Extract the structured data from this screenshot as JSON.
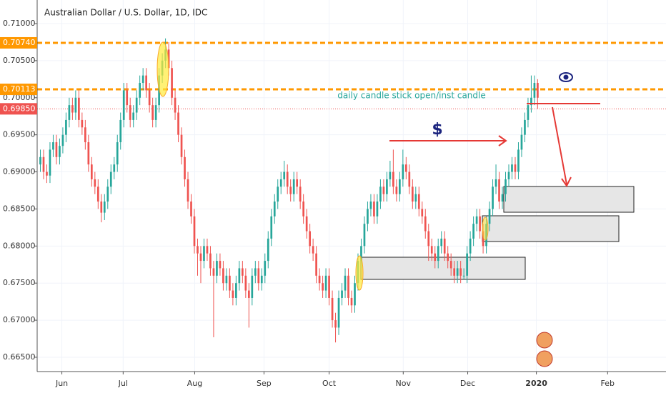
{
  "chart_data": {
    "type": "candlestick",
    "title": "Australian Dollar / U.S. Dollar, 1D, IDC",
    "annotation": "daily candle stick open/inst candle",
    "marker_text": "$",
    "up_color": "#26a69a",
    "down_color": "#ef5350",
    "grid": true,
    "ylim": [
      0.66307,
      0.71318
    ],
    "xlim": [
      -1,
      195
    ],
    "yticks": [
      {
        "value": 0.665,
        "label": "0.66500"
      },
      {
        "value": 0.67,
        "label": "0.67000"
      },
      {
        "value": 0.675,
        "label": "0.67500"
      },
      {
        "value": 0.68,
        "label": "0.68000"
      },
      {
        "value": 0.685,
        "label": "0.68500"
      },
      {
        "value": 0.69,
        "label": "0.69000"
      },
      {
        "value": 0.695,
        "label": "0.69500"
      },
      {
        "value": 0.7,
        "label": "0.70000"
      },
      {
        "value": 0.705,
        "label": "0.70500"
      },
      {
        "value": 0.71,
        "label": "0.71000"
      }
    ],
    "xticks": [
      {
        "value": 6.7,
        "label": "Jun"
      },
      {
        "value": 25.8,
        "label": "Jul"
      },
      {
        "value": 48.1,
        "label": "Aug"
      },
      {
        "value": 69.7,
        "label": "Sep"
      },
      {
        "value": 90,
        "label": "Oct"
      },
      {
        "value": 113.1,
        "label": "Nov"
      },
      {
        "value": 133.2,
        "label": "Dec"
      },
      {
        "value": 154.6,
        "label": "2020"
      },
      {
        "value": 176.8,
        "label": "Feb"
      }
    ],
    "levels": [
      {
        "value": 0.7074,
        "label": "0.70740",
        "color": "#ff9800"
      },
      {
        "value": 0.70113,
        "label": "0.70113",
        "color": "#ff9800"
      },
      {
        "value": 0.6985,
        "label": "0.69850",
        "color": "#ef5350"
      }
    ],
    "candles": [
      [
        0.691,
        0.693,
        0.69,
        0.692
      ],
      [
        0.692,
        0.693,
        0.689,
        0.69
      ],
      [
        0.69,
        0.691,
        0.6885,
        0.6895
      ],
      [
        0.6895,
        0.694,
        0.6885,
        0.693
      ],
      [
        0.693,
        0.695,
        0.692,
        0.694
      ],
      [
        0.694,
        0.695,
        0.691,
        0.692
      ],
      [
        0.692,
        0.6945,
        0.691,
        0.6935
      ],
      [
        0.6935,
        0.696,
        0.6925,
        0.695
      ],
      [
        0.695,
        0.698,
        0.694,
        0.697
      ],
      [
        0.697,
        0.7,
        0.696,
        0.699
      ],
      [
        0.699,
        0.7,
        0.697,
        0.698
      ],
      [
        0.698,
        0.701,
        0.697,
        0.7
      ],
      [
        0.7,
        0.701,
        0.696,
        0.697
      ],
      [
        0.697,
        0.698,
        0.695,
        0.696
      ],
      [
        0.696,
        0.697,
        0.693,
        0.694
      ],
      [
        0.694,
        0.695,
        0.69,
        0.691
      ],
      [
        0.691,
        0.692,
        0.688,
        0.689
      ],
      [
        0.689,
        0.69,
        0.687,
        0.688
      ],
      [
        0.688,
        0.689,
        0.685,
        0.686
      ],
      [
        0.686,
        0.687,
        0.6832,
        0.6845
      ],
      [
        0.6845,
        0.687,
        0.6835,
        0.686
      ],
      [
        0.686,
        0.689,
        0.685,
        0.688
      ],
      [
        0.688,
        0.691,
        0.687,
        0.69
      ],
      [
        0.69,
        0.692,
        0.689,
        0.691
      ],
      [
        0.691,
        0.695,
        0.69,
        0.694
      ],
      [
        0.694,
        0.698,
        0.693,
        0.697
      ],
      [
        0.697,
        0.702,
        0.696,
        0.701
      ],
      [
        0.701,
        0.702,
        0.698,
        0.699
      ],
      [
        0.699,
        0.7,
        0.696,
        0.697
      ],
      [
        0.697,
        0.699,
        0.696,
        0.698
      ],
      [
        0.698,
        0.701,
        0.697,
        0.7
      ],
      [
        0.7,
        0.703,
        0.699,
        0.702
      ],
      [
        0.702,
        0.704,
        0.701,
        0.703
      ],
      [
        0.703,
        0.704,
        0.7,
        0.701
      ],
      [
        0.701,
        0.702,
        0.698,
        0.699
      ],
      [
        0.699,
        0.7,
        0.696,
        0.697
      ],
      [
        0.697,
        0.7,
        0.696,
        0.699
      ],
      [
        0.699,
        0.704,
        0.698,
        0.703
      ],
      [
        0.703,
        0.706,
        0.702,
        0.705
      ],
      [
        0.705,
        0.708,
        0.704,
        0.7065
      ],
      [
        0.7065,
        0.7075,
        0.703,
        0.704
      ],
      [
        0.704,
        0.705,
        0.699,
        0.7
      ],
      [
        0.7,
        0.701,
        0.697,
        0.698
      ],
      [
        0.698,
        0.699,
        0.694,
        0.695
      ],
      [
        0.695,
        0.696,
        0.691,
        0.692
      ],
      [
        0.692,
        0.693,
        0.688,
        0.689
      ],
      [
        0.689,
        0.69,
        0.685,
        0.686
      ],
      [
        0.686,
        0.687,
        0.683,
        0.684
      ],
      [
        0.684,
        0.685,
        0.679,
        0.68
      ],
      [
        0.68,
        0.681,
        0.676,
        0.679
      ],
      [
        0.679,
        0.68,
        0.675,
        0.678
      ],
      [
        0.678,
        0.681,
        0.677,
        0.68
      ],
      [
        0.68,
        0.681,
        0.678,
        0.679
      ],
      [
        0.679,
        0.68,
        0.676,
        0.677
      ],
      [
        0.677,
        0.678,
        0.6677,
        0.676
      ],
      [
        0.676,
        0.679,
        0.675,
        0.678
      ],
      [
        0.678,
        0.679,
        0.676,
        0.677
      ],
      [
        0.677,
        0.678,
        0.674,
        0.675
      ],
      [
        0.675,
        0.677,
        0.674,
        0.676
      ],
      [
        0.676,
        0.677,
        0.673,
        0.674
      ],
      [
        0.674,
        0.675,
        0.672,
        0.673
      ],
      [
        0.673,
        0.676,
        0.672,
        0.675
      ],
      [
        0.675,
        0.678,
        0.674,
        0.677
      ],
      [
        0.677,
        0.678,
        0.675,
        0.676
      ],
      [
        0.676,
        0.677,
        0.673,
        0.674
      ],
      [
        0.674,
        0.675,
        0.669,
        0.673
      ],
      [
        0.673,
        0.677,
        0.672,
        0.676
      ],
      [
        0.676,
        0.678,
        0.675,
        0.677
      ],
      [
        0.677,
        0.678,
        0.674,
        0.675
      ],
      [
        0.675,
        0.677,
        0.674,
        0.676
      ],
      [
        0.676,
        0.679,
        0.675,
        0.678
      ],
      [
        0.678,
        0.682,
        0.677,
        0.681
      ],
      [
        0.681,
        0.685,
        0.68,
        0.684
      ],
      [
        0.684,
        0.687,
        0.683,
        0.686
      ],
      [
        0.686,
        0.689,
        0.685,
        0.688
      ],
      [
        0.688,
        0.69,
        0.687,
        0.689
      ],
      [
        0.689,
        0.6915,
        0.688,
        0.69
      ],
      [
        0.69,
        0.691,
        0.687,
        0.688
      ],
      [
        0.688,
        0.689,
        0.686,
        0.687
      ],
      [
        0.687,
        0.69,
        0.686,
        0.689
      ],
      [
        0.689,
        0.69,
        0.687,
        0.688
      ],
      [
        0.688,
        0.689,
        0.685,
        0.686
      ],
      [
        0.686,
        0.687,
        0.683,
        0.684
      ],
      [
        0.684,
        0.685,
        0.681,
        0.682
      ],
      [
        0.682,
        0.683,
        0.679,
        0.68
      ],
      [
        0.68,
        0.681,
        0.678,
        0.679
      ],
      [
        0.679,
        0.68,
        0.675,
        0.676
      ],
      [
        0.676,
        0.677,
        0.674,
        0.675
      ],
      [
        0.675,
        0.676,
        0.673,
        0.674
      ],
      [
        0.674,
        0.677,
        0.673,
        0.676
      ],
      [
        0.676,
        0.677,
        0.672,
        0.673
      ],
      [
        0.673,
        0.674,
        0.669,
        0.67
      ],
      [
        0.67,
        0.671,
        0.667,
        0.669
      ],
      [
        0.669,
        0.674,
        0.668,
        0.673
      ],
      [
        0.673,
        0.675,
        0.672,
        0.674
      ],
      [
        0.674,
        0.677,
        0.673,
        0.676
      ],
      [
        0.676,
        0.677,
        0.672,
        0.673
      ],
      [
        0.673,
        0.674,
        0.671,
        0.672
      ],
      [
        0.672,
        0.676,
        0.671,
        0.675
      ],
      [
        0.675,
        0.679,
        0.674,
        0.678
      ],
      [
        0.678,
        0.681,
        0.677,
        0.68
      ],
      [
        0.68,
        0.684,
        0.679,
        0.683
      ],
      [
        0.683,
        0.686,
        0.682,
        0.685
      ],
      [
        0.685,
        0.687,
        0.684,
        0.686
      ],
      [
        0.686,
        0.687,
        0.683,
        0.684
      ],
      [
        0.684,
        0.687,
        0.683,
        0.686
      ],
      [
        0.686,
        0.689,
        0.685,
        0.688
      ],
      [
        0.688,
        0.689,
        0.686,
        0.687
      ],
      [
        0.687,
        0.69,
        0.686,
        0.689
      ],
      [
        0.689,
        0.6915,
        0.688,
        0.69
      ],
      [
        0.69,
        0.693,
        0.687,
        0.688
      ],
      [
        0.688,
        0.689,
        0.686,
        0.687
      ],
      [
        0.687,
        0.69,
        0.686,
        0.689
      ],
      [
        0.689,
        0.693,
        0.688,
        0.691
      ],
      [
        0.691,
        0.692,
        0.689,
        0.69
      ],
      [
        0.69,
        0.691,
        0.687,
        0.688
      ],
      [
        0.688,
        0.689,
        0.685,
        0.686
      ],
      [
        0.686,
        0.688,
        0.685,
        0.687
      ],
      [
        0.687,
        0.688,
        0.684,
        0.685
      ],
      [
        0.685,
        0.686,
        0.683,
        0.684
      ],
      [
        0.684,
        0.685,
        0.681,
        0.682
      ],
      [
        0.682,
        0.683,
        0.678,
        0.68
      ],
      [
        0.68,
        0.681,
        0.678,
        0.679
      ],
      [
        0.679,
        0.68,
        0.677,
        0.678
      ],
      [
        0.678,
        0.681,
        0.677,
        0.68
      ],
      [
        0.68,
        0.682,
        0.679,
        0.681
      ],
      [
        0.681,
        0.682,
        0.678,
        0.679
      ],
      [
        0.679,
        0.68,
        0.677,
        0.678
      ],
      [
        0.678,
        0.679,
        0.676,
        0.677
      ],
      [
        0.677,
        0.678,
        0.675,
        0.676
      ],
      [
        0.676,
        0.678,
        0.675,
        0.677
      ],
      [
        0.677,
        0.678,
        0.675,
        0.676
      ],
      [
        0.676,
        0.677,
        0.6755,
        0.676
      ],
      [
        0.676,
        0.68,
        0.675,
        0.679
      ],
      [
        0.679,
        0.682,
        0.678,
        0.681
      ],
      [
        0.681,
        0.684,
        0.68,
        0.683
      ],
      [
        0.683,
        0.685,
        0.682,
        0.684
      ],
      [
        0.684,
        0.685,
        0.681,
        0.682
      ],
      [
        0.682,
        0.683,
        0.679,
        0.68
      ],
      [
        0.68,
        0.684,
        0.679,
        0.683
      ],
      [
        0.683,
        0.686,
        0.682,
        0.685
      ],
      [
        0.685,
        0.689,
        0.684,
        0.688
      ],
      [
        0.688,
        0.691,
        0.687,
        0.689
      ],
      [
        0.689,
        0.69,
        0.685,
        0.686
      ],
      [
        0.686,
        0.688,
        0.685,
        0.687
      ],
      [
        0.687,
        0.69,
        0.686,
        0.689
      ],
      [
        0.689,
        0.691,
        0.688,
        0.69
      ],
      [
        0.69,
        0.692,
        0.689,
        0.691
      ],
      [
        0.691,
        0.692,
        0.689,
        0.69
      ],
      [
        0.69,
        0.694,
        0.689,
        0.693
      ],
      [
        0.693,
        0.696,
        0.692,
        0.695
      ],
      [
        0.695,
        0.698,
        0.694,
        0.697
      ],
      [
        0.697,
        0.7,
        0.696,
        0.699
      ],
      [
        0.699,
        0.703,
        0.698,
        0.7
      ],
      [
        0.7,
        0.703,
        0.699,
        0.702
      ],
      [
        0.702,
        0.7025,
        0.6985,
        0.7
      ]
    ]
  }
}
